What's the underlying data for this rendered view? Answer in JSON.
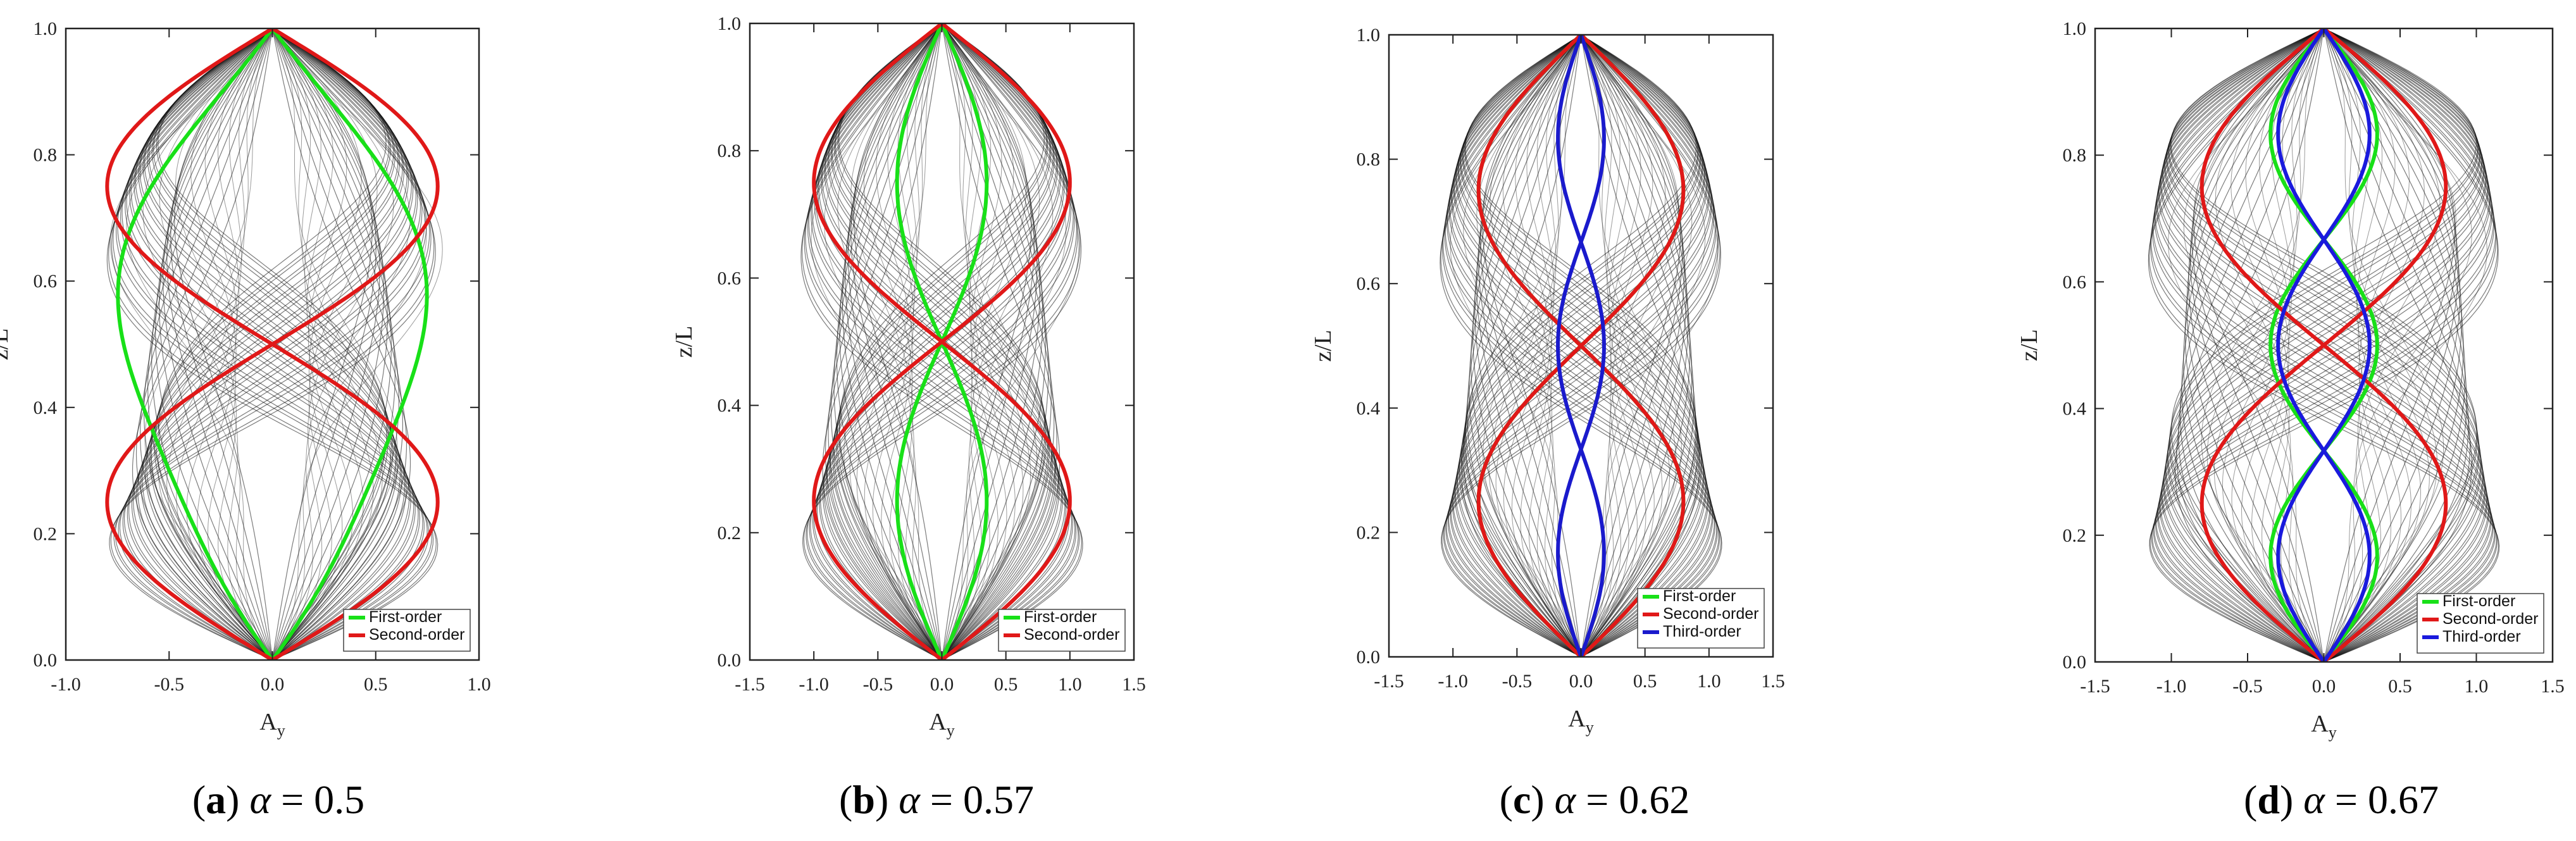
{
  "chart_data": [
    {
      "type": "line",
      "subplot_label": "a",
      "param_symbol": "α",
      "param_value": "0.5",
      "xlabel": "A",
      "xlabel_sub": "y",
      "ylabel": "z/L",
      "xlim": [
        -1.0,
        1.0
      ],
      "ylim": [
        0.0,
        1.0
      ],
      "xticks": [
        "-1.0",
        "-0.5",
        "0.0",
        "0.5",
        "1.0"
      ],
      "yticks": [
        "0.0",
        "0.2",
        "0.4",
        "0.6",
        "0.8",
        "1.0"
      ],
      "series": [
        {
          "name": "First-order",
          "color": "#18e018",
          "order": 1,
          "amplitude": 0.72
        },
        {
          "name": "Second-order",
          "color": "#e01818",
          "order": 2,
          "amplitude": 0.8
        }
      ],
      "background_mode_amplitudes": [
        0.55,
        0.8,
        1.0
      ],
      "legend_position": "bottom-right"
    },
    {
      "type": "line",
      "subplot_label": "b",
      "param_symbol": "α",
      "param_value": "0.57",
      "xlabel": "A",
      "xlabel_sub": "y",
      "ylabel": "z/L",
      "xlim": [
        -1.5,
        1.5
      ],
      "ylim": [
        0.0,
        1.0
      ],
      "xticks": [
        "-1.5",
        "-1.0",
        "-0.5",
        "0.0",
        "0.5",
        "1.0",
        "1.5"
      ],
      "yticks": [
        "0.0",
        "0.2",
        "0.4",
        "0.6",
        "0.8",
        "1.0"
      ],
      "series": [
        {
          "name": "First-order",
          "color": "#18e018",
          "order": 2,
          "amplitude": 0.35
        },
        {
          "name": "Second-order",
          "color": "#e01818",
          "order": 2,
          "amplitude": 1.0
        }
      ],
      "background_mode_amplitudes": [
        0.8,
        1.1,
        1.3
      ],
      "legend_position": "bottom-right"
    },
    {
      "type": "line",
      "subplot_label": "c",
      "param_symbol": "α",
      "param_value": "0.62",
      "xlabel": "A",
      "xlabel_sub": "y",
      "ylabel": "z/L",
      "xlim": [
        -1.5,
        1.5
      ],
      "ylim": [
        0.0,
        1.0
      ],
      "xticks": [
        "-1.5",
        "-1.0",
        "-0.5",
        "0.0",
        "0.5",
        "1.0",
        "1.5"
      ],
      "yticks": [
        "0.0",
        "0.2",
        "0.4",
        "0.6",
        "0.8",
        "1.0"
      ],
      "series": [
        {
          "name": "First-order",
          "color": "#18e018",
          "order": 2,
          "amplitude": 0.8
        },
        {
          "name": "Second-order",
          "color": "#e01818",
          "order": 2,
          "amplitude": 0.8
        },
        {
          "name": "Third-order",
          "color": "#1a1acc",
          "order": 3,
          "amplitude": 0.18
        }
      ],
      "background_mode_amplitudes": [
        0.9,
        1.1,
        1.3
      ],
      "legend_position": "bottom-right"
    },
    {
      "type": "line",
      "subplot_label": "d",
      "param_symbol": "α",
      "param_value": "0.67",
      "xlabel": "A",
      "xlabel_sub": "y",
      "ylabel": "z/L",
      "xlim": [
        -1.5,
        1.5
      ],
      "ylim": [
        0.0,
        1.0
      ],
      "xticks": [
        "-1.5",
        "-1.0",
        "-0.5",
        "0.0",
        "0.5",
        "1.0",
        "1.5"
      ],
      "yticks": [
        "0.0",
        "0.2",
        "0.4",
        "0.6",
        "0.8",
        "1.0"
      ],
      "series": [
        {
          "name": "First-order",
          "color": "#18e018",
          "order": 3,
          "amplitude": 0.35
        },
        {
          "name": "Second-order",
          "color": "#e01818",
          "order": 2,
          "amplitude": 0.8
        },
        {
          "name": "Third-order",
          "color": "#1a1add",
          "order": 3,
          "amplitude": 0.3
        }
      ],
      "background_mode_amplitudes": [
        1.0,
        1.15,
        1.3
      ],
      "legend_position": "bottom-right"
    }
  ]
}
